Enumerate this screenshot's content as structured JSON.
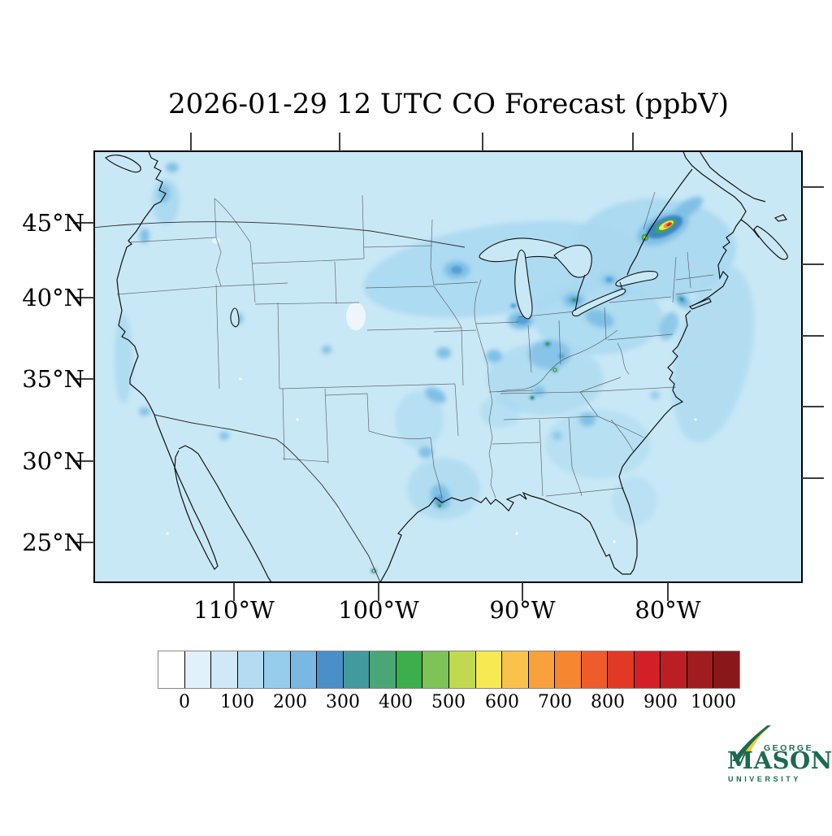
{
  "title": "2026-01-29 12 UTC CO Forecast (ppbV)",
  "axes": {
    "lat_tick_labels": [
      "45°N",
      "40°N",
      "35°N",
      "30°N",
      "25°N"
    ],
    "lon_tick_labels": [
      "110°W",
      "100°W",
      "90°W",
      "80°W"
    ]
  },
  "colorbar": {
    "tick_labels": [
      "0",
      "100",
      "200",
      "300",
      "400",
      "500",
      "600",
      "700",
      "800",
      "900",
      "1000"
    ],
    "units": "ppbV",
    "cell_colors": [
      "#ffffff",
      "#e1f1fb",
      "#cfe9f8",
      "#b3dcf3",
      "#96ccec",
      "#79b8e2",
      "#4a8fc7",
      "#429a9e",
      "#4aa577",
      "#3cae4b",
      "#7ec358",
      "#c0d94f",
      "#f6e951",
      "#f9c24a",
      "#f9a13c",
      "#f6862f",
      "#ee5c2b",
      "#e23927",
      "#d31f28",
      "#bb1f24",
      "#a01c1f",
      "#8a181b"
    ]
  },
  "map_colors": {
    "background": "#c9e8f6",
    "shade_light": "#a8d8f0",
    "shade_mid": "#7fc0e6",
    "shade_dark": "#569fd4",
    "hotspot_green": "#3fa065",
    "hotspot_yellow": "#f2e84e",
    "hotspot_orange": "#f59140",
    "hotspot_red": "#d93025"
  },
  "logo": {
    "line1": "GEORGE",
    "line2": "MASON",
    "line3": "UNIVERSITY",
    "green": "#1a6b52",
    "gold": "#fdc82f"
  }
}
